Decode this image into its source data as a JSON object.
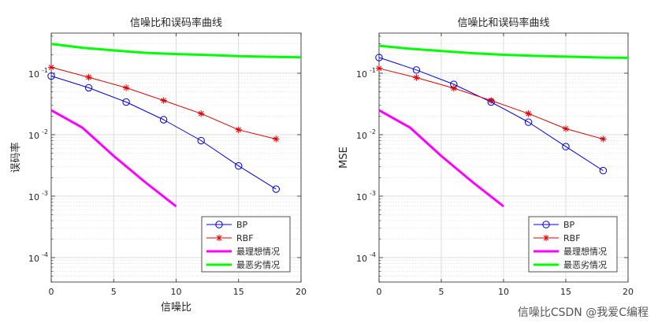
{
  "colors": {
    "bp": "#0000e0",
    "rbf": "#e00000",
    "ideal": "#ff00ff",
    "worst": "#00ff00",
    "grid": "#d9d9d9",
    "axis": "#262626"
  },
  "watermark": "信噪比CSDN @我爱C编程",
  "chart_data": [
    {
      "type": "line",
      "title": "信噪比和误码率曲线",
      "xlabel": "信噪比",
      "ylabel": "误码率",
      "xlim": [
        0,
        20
      ],
      "ylim": [
        4e-05,
        0.45
      ],
      "yscale": "log",
      "grid": true,
      "xticks": [
        0,
        5,
        10,
        15,
        20
      ],
      "yticks": [
        {
          "v": 0.1,
          "base": "10",
          "exp": "-1"
        },
        {
          "v": 0.01,
          "base": "10",
          "exp": "-2"
        },
        {
          "v": 0.001,
          "base": "10",
          "exp": "-3"
        },
        {
          "v": 0.0001,
          "base": "10",
          "exp": "-4"
        }
      ],
      "legend_position": "bottom-right",
      "series": [
        {
          "name": "BP",
          "key": "bp",
          "marker": "circle",
          "width": 1,
          "x": [
            0,
            3,
            6,
            9,
            12,
            15,
            18
          ],
          "y": [
            0.09,
            0.058,
            0.034,
            0.0175,
            0.008,
            0.0031,
            0.0013
          ]
        },
        {
          "name": "RBF",
          "key": "rbf",
          "marker": "star",
          "width": 1,
          "x": [
            0,
            3,
            6,
            9,
            12,
            15,
            18
          ],
          "y": [
            0.125,
            0.086,
            0.058,
            0.036,
            0.022,
            0.012,
            0.0085
          ]
        },
        {
          "name": "最理想情况",
          "key": "ideal",
          "marker": "none",
          "width": 3,
          "x": [
            0,
            2.5,
            5,
            7.5,
            10
          ],
          "y": [
            0.025,
            0.013,
            0.0045,
            0.0017,
            0.00068
          ]
        },
        {
          "name": "最恶劣情况",
          "key": "worst",
          "marker": "none",
          "width": 3,
          "x": [
            0,
            2.5,
            5,
            7.5,
            10,
            12.5,
            15,
            17.5,
            20
          ],
          "y": [
            0.3,
            0.26,
            0.235,
            0.215,
            0.205,
            0.198,
            0.19,
            0.185,
            0.182
          ]
        }
      ]
    },
    {
      "type": "line",
      "title": "信噪比和误码率曲线",
      "xlabel": "",
      "ylabel": "MSE",
      "xlim": [
        0,
        20
      ],
      "ylim": [
        4e-05,
        0.45
      ],
      "yscale": "log",
      "grid": true,
      "xticks": [
        0,
        5,
        10,
        15,
        20
      ],
      "yticks": [
        {
          "v": 0.1,
          "base": "10",
          "exp": "-1"
        },
        {
          "v": 0.01,
          "base": "10",
          "exp": "-2"
        },
        {
          "v": 0.001,
          "base": "10",
          "exp": "-3"
        },
        {
          "v": 0.0001,
          "base": "10",
          "exp": "-4"
        }
      ],
      "legend_position": "bottom-right",
      "series": [
        {
          "name": "BP",
          "key": "bp",
          "marker": "circle",
          "width": 1,
          "x": [
            0,
            3,
            6,
            9,
            12,
            15,
            18
          ],
          "y": [
            0.18,
            0.113,
            0.066,
            0.034,
            0.016,
            0.0064,
            0.0026
          ]
        },
        {
          "name": "RBF",
          "key": "rbf",
          "marker": "star",
          "width": 1,
          "x": [
            0,
            3,
            6,
            9,
            12,
            15,
            18
          ],
          "y": [
            0.12,
            0.085,
            0.057,
            0.036,
            0.022,
            0.0125,
            0.0085
          ]
        },
        {
          "name": "最理想情况",
          "key": "ideal",
          "marker": "none",
          "width": 3,
          "x": [
            0,
            2.5,
            5,
            7.5,
            10
          ],
          "y": [
            0.025,
            0.013,
            0.0045,
            0.0017,
            0.00068
          ]
        },
        {
          "name": "最恶劣情况",
          "key": "worst",
          "marker": "none",
          "width": 3,
          "x": [
            0,
            2.5,
            5,
            7.5,
            10,
            12.5,
            15,
            17.5,
            20
          ],
          "y": [
            0.28,
            0.25,
            0.23,
            0.212,
            0.2,
            0.192,
            0.186,
            0.181,
            0.178
          ]
        }
      ]
    }
  ]
}
